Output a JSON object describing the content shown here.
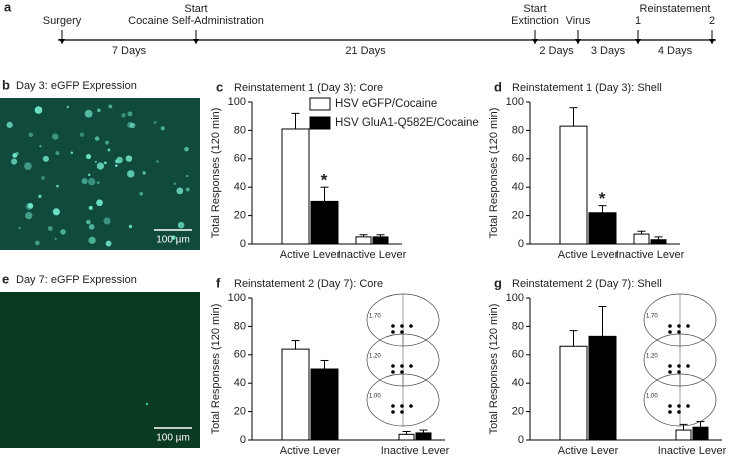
{
  "timeline": {
    "panel": "a",
    "events": [
      {
        "lines": [
          "Surgery"
        ]
      },
      {
        "lines": [
          "Start",
          "Cocaine Self-Administration"
        ]
      },
      {
        "lines": [
          "Start",
          "Extinction"
        ]
      },
      {
        "lines": [
          "Virus"
        ]
      },
      {
        "lines": [
          "1"
        ]
      },
      {
        "lines": [
          "2"
        ]
      }
    ],
    "group_label": "Reinstatement",
    "durations": [
      "7 Days",
      "21 Days",
      "2 Days",
      "3 Days",
      "4 Days"
    ]
  },
  "images": [
    {
      "panel": "b",
      "title": "Day 3: eGFP Expression",
      "scale_bar": "100 µm"
    },
    {
      "panel": "e",
      "title": "Day 7: eGFP Expression",
      "scale_bar": "100 µm"
    }
  ],
  "chart_data": [
    {
      "type": "bar",
      "panel": "c",
      "title": "Reinstatement 1 (Day 3): Core",
      "y_label": "Total Responses (120 min)",
      "categories": [
        "Active Lever",
        "Inactive Lever"
      ],
      "ylim": [
        0,
        100
      ],
      "yticks": [
        0,
        20,
        40,
        60,
        80,
        100
      ],
      "series": [
        {
          "name": "HSV eGFP/Cocaine",
          "color": "#ffffff",
          "values": [
            81,
            5
          ],
          "errors": [
            11,
            1.5
          ]
        },
        {
          "name": "HSV GluA1-Q582E/Cocaine",
          "color": "#000000",
          "values": [
            30,
            5
          ],
          "errors": [
            10,
            1.5
          ]
        }
      ],
      "annotations": [
        {
          "text": "*",
          "series": 1,
          "category": 0
        }
      ]
    },
    {
      "type": "bar",
      "panel": "d",
      "title": "Reinstatement 1 (Day 3): Shell",
      "y_label": "Total Responses (120 min)",
      "categories": [
        "Active Lever",
        "Inactive Lever"
      ],
      "ylim": [
        0,
        100
      ],
      "yticks": [
        0,
        20,
        40,
        60,
        80,
        100
      ],
      "series": [
        {
          "color": "#ffffff",
          "values": [
            83,
            7
          ],
          "errors": [
            13,
            2
          ]
        },
        {
          "color": "#000000",
          "values": [
            22,
            3
          ],
          "errors": [
            5,
            2
          ]
        }
      ],
      "annotations": [
        {
          "text": "*",
          "series": 1,
          "category": 0
        }
      ]
    },
    {
      "type": "bar",
      "panel": "f",
      "title": "Reinstatement 2 (Day 7): Core",
      "y_label": "Total Responses (120 min)",
      "categories": [
        "Active Lever",
        "Inactive Lever"
      ],
      "ylim": [
        0,
        100
      ],
      "yticks": [
        0,
        20,
        40,
        60,
        80,
        100
      ],
      "series": [
        {
          "color": "#ffffff",
          "values": [
            64,
            4
          ],
          "errors": [
            6,
            2
          ]
        },
        {
          "color": "#000000",
          "values": [
            50,
            5
          ],
          "errors": [
            6,
            2
          ]
        }
      ],
      "atlas_labels": [
        "1.70",
        "1.20",
        "1.00"
      ]
    },
    {
      "type": "bar",
      "panel": "g",
      "title": "Reinstatement 2 (Day 7): Shell",
      "y_label": "Total Responses (120 min)",
      "categories": [
        "Active Lever",
        "Inactive Lever"
      ],
      "ylim": [
        0,
        100
      ],
      "yticks": [
        0,
        20,
        40,
        60,
        80,
        100
      ],
      "series": [
        {
          "color": "#ffffff",
          "values": [
            66,
            7
          ],
          "errors": [
            11,
            4
          ]
        },
        {
          "color": "#000000",
          "values": [
            73,
            9
          ],
          "errors": [
            21,
            4
          ]
        }
      ],
      "atlas_labels": [
        "1.70",
        "1.20",
        "1.00"
      ]
    }
  ]
}
